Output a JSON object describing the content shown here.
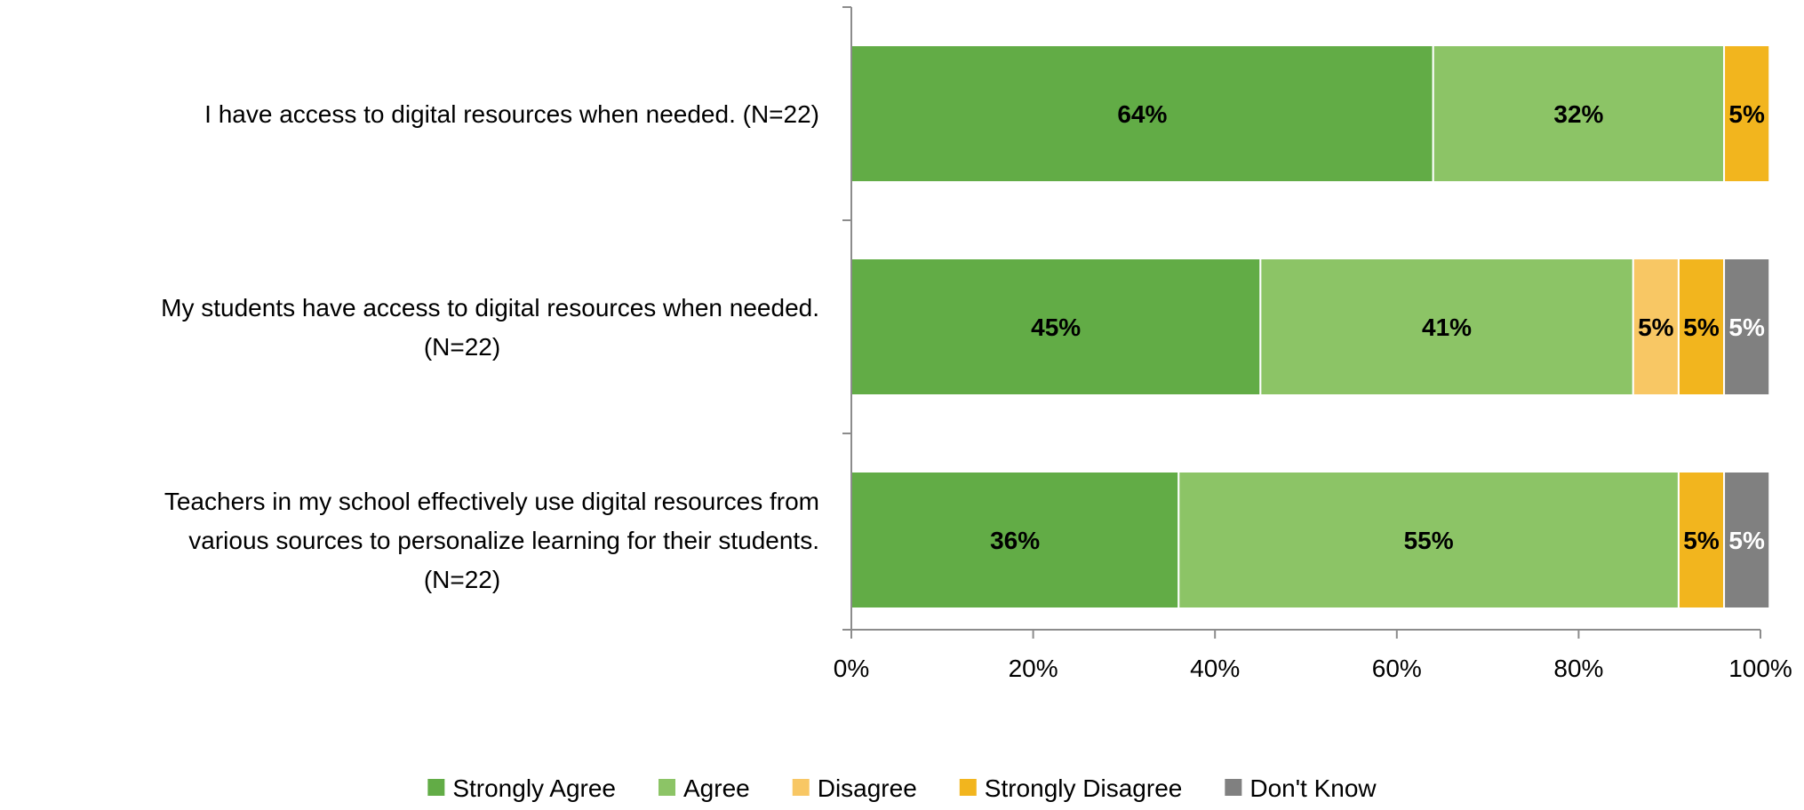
{
  "chart_data": {
    "type": "bar",
    "orientation": "horizontal",
    "stacked": true,
    "title": "",
    "xlabel": "",
    "ylabel": "",
    "xlim": [
      0,
      100
    ],
    "x_ticks": [
      0,
      20,
      40,
      60,
      80,
      100
    ],
    "x_tick_labels": [
      "0%",
      "20%",
      "40%",
      "60%",
      "80%",
      "100%"
    ],
    "grid": false,
    "legend_position": "bottom",
    "categories": [
      [
        "I have access to digital resources when needed. (N=22)"
      ],
      [
        "My students have access to digital resources when needed.",
        "(N=22)"
      ],
      [
        "Teachers in my school effectively use digital resources from",
        "various sources to personalize learning for their students.",
        "(N=22)"
      ]
    ],
    "series": [
      {
        "name": "Strongly Agree",
        "color": "#62ac46",
        "label_color": "#000000",
        "values": [
          64,
          45,
          36
        ],
        "labels": [
          "64%",
          "45%",
          "36%"
        ]
      },
      {
        "name": "Agree",
        "color": "#8cc466",
        "label_color": "#000000",
        "values": [
          32,
          41,
          55
        ],
        "labels": [
          "32%",
          "41%",
          "55%"
        ]
      },
      {
        "name": "Disagree",
        "color": "#f8c764",
        "label_color": "#000000",
        "values": [
          0,
          5,
          0
        ],
        "labels": [
          "",
          "5%",
          ""
        ]
      },
      {
        "name": "Strongly Disagree",
        "color": "#f2b51e",
        "label_color": "#000000",
        "values": [
          5,
          5,
          5
        ],
        "labels": [
          "5%",
          "5%",
          "5%"
        ]
      },
      {
        "name": "Don't Know",
        "color": "#808080",
        "label_color": "#ffffff",
        "values": [
          0,
          5,
          5
        ],
        "labels": [
          "",
          "5%",
          "5%"
        ]
      }
    ]
  }
}
